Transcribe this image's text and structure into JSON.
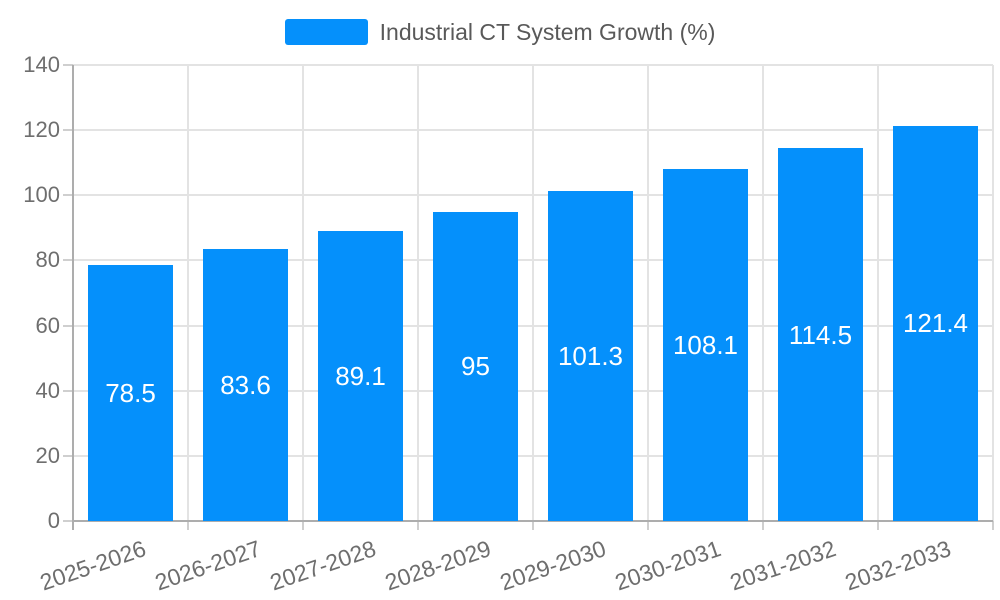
{
  "legend": {
    "label": "Industrial CT System Growth (%)"
  },
  "chart_data": {
    "type": "bar",
    "title": "Industrial CT System Growth (%)",
    "categories": [
      "2025-2026",
      "2026-2027",
      "2027-2028",
      "2028-2029",
      "2029-2030",
      "2030-2031",
      "2031-2032",
      "2032-2033"
    ],
    "values": [
      78.5,
      83.6,
      89.1,
      95,
      101.3,
      108.1,
      114.5,
      121.4
    ],
    "value_labels": [
      "78.5",
      "83.6",
      "89.1",
      "95",
      "101.3",
      "108.1",
      "114.5",
      "121.4"
    ],
    "xlabel": "",
    "ylabel": "",
    "ylim": [
      0,
      140
    ],
    "ytick_labels": [
      "0",
      "20",
      "40",
      "60",
      "80",
      "100",
      "120",
      "140"
    ],
    "grid": "horizontal and vertical gridlines on",
    "legend_position": "top-center",
    "datalabel_position": "inside-center"
  },
  "colors": {
    "bar": "#0590FB",
    "datalabel": "#FFFFFF",
    "gridline": "#E3E3E3",
    "axis_line": "#ADADAD",
    "tick_mark": "#CFCFCF",
    "axis_label_text": "#6E6E6E",
    "legend_text": "#595959",
    "background": "#FFFFFF"
  }
}
